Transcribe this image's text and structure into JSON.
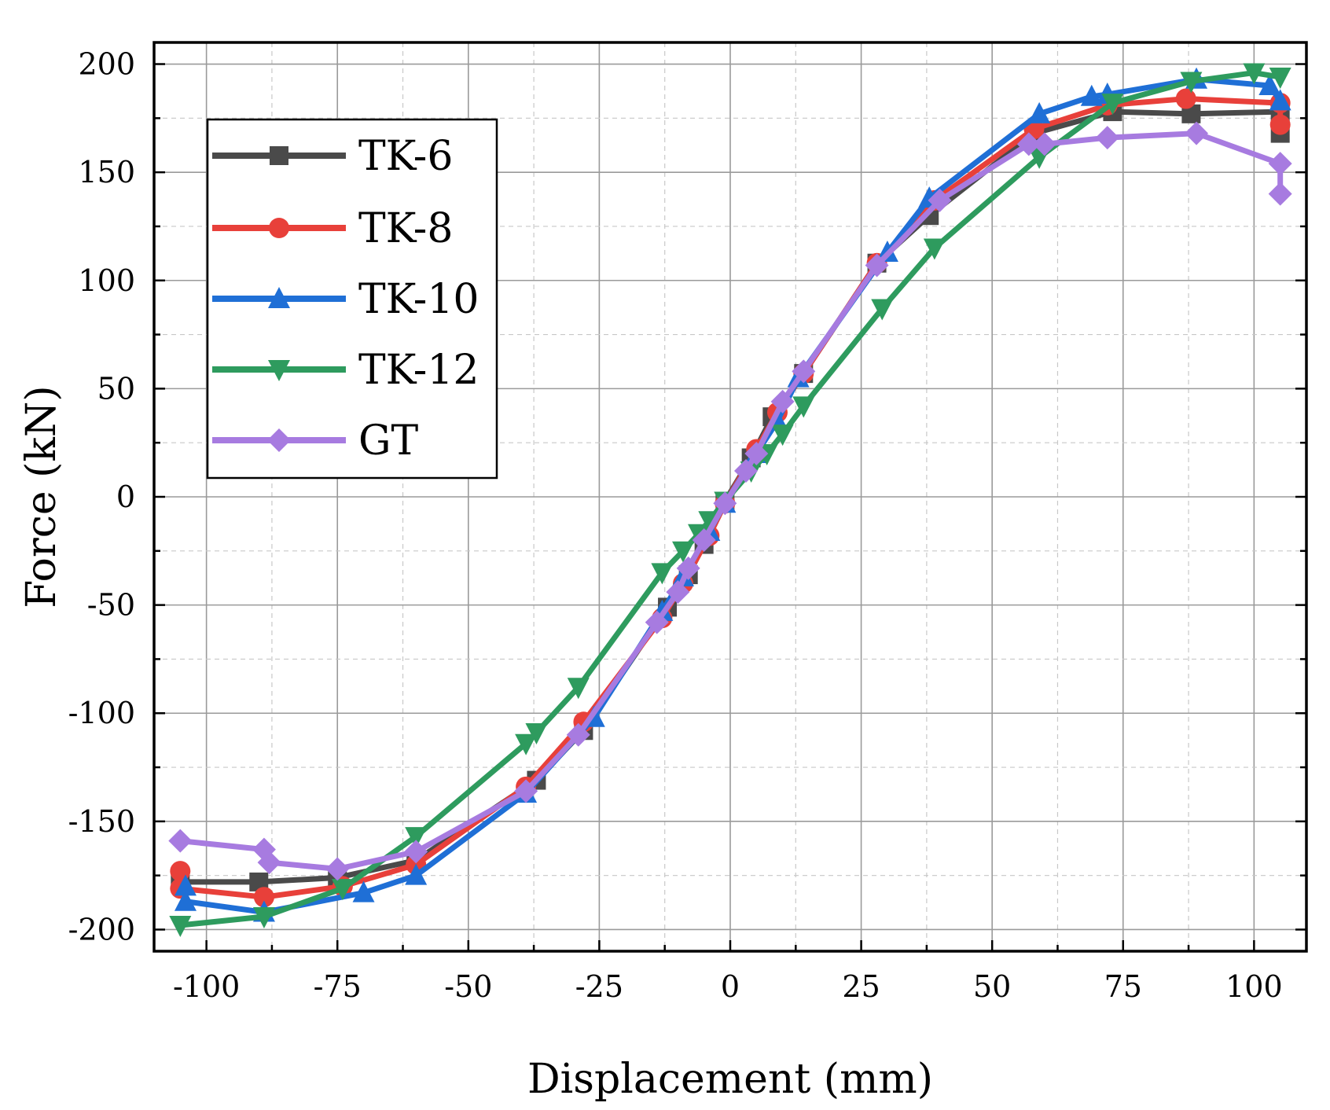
{
  "chart_data": {
    "type": "line",
    "title": "",
    "xlabel": "Displacement (mm)",
    "ylabel": "Force (kN)",
    "xlim": [
      -110,
      110
    ],
    "ylim": [
      -210,
      210
    ],
    "xticks": [
      -100,
      -75,
      -50,
      -25,
      0,
      25,
      50,
      75,
      100
    ],
    "yticks": [
      -200,
      -150,
      -100,
      -50,
      0,
      50,
      100,
      150,
      200
    ],
    "xtick_labels": [
      "-100",
      "-75",
      "-50",
      "-25",
      "0",
      "25",
      "50",
      "75",
      "100"
    ],
    "ytick_labels": [
      "-200",
      "-150",
      "-100",
      "-50",
      "0",
      "50",
      "100",
      "150",
      "200"
    ],
    "grid": true,
    "legend_position": "top-left",
    "series": [
      {
        "name": "TK-6",
        "color": "#4a4a4a",
        "marker": "square",
        "x": [
          -105,
          -90,
          -75,
          -60,
          -37,
          -28,
          -12,
          -8,
          -5,
          -1,
          4,
          8,
          14,
          28,
          38,
          58,
          73,
          88,
          105,
          105
        ],
        "y": [
          -178,
          -178,
          -176,
          -168,
          -131,
          -108,
          -51,
          -36,
          -22,
          -2,
          18,
          37,
          57,
          108,
          130,
          168,
          178,
          177,
          178,
          168
        ]
      },
      {
        "name": "TK-8",
        "color": "#e8403a",
        "marker": "circle",
        "x": [
          -105,
          -105,
          -89,
          -74,
          -60,
          -39,
          -28,
          -13,
          -9,
          -4,
          -1,
          5,
          9,
          14,
          28,
          39,
          58,
          72,
          87,
          105,
          105
        ],
        "y": [
          -173,
          -181,
          -185,
          -180,
          -170,
          -134,
          -104,
          -56,
          -40,
          -18,
          -3,
          22,
          39,
          57,
          108,
          137,
          170,
          181,
          184,
          182,
          172
        ]
      },
      {
        "name": "TK-10",
        "color": "#1f6fd6",
        "marker": "triangle-up",
        "x": [
          -104,
          -104,
          -89,
          -70,
          -60,
          -39,
          -26,
          -13,
          -9,
          -4,
          -1,
          5,
          9,
          13,
          30,
          38,
          59,
          69,
          72,
          89,
          103,
          105
        ],
        "y": [
          -180,
          -187,
          -192,
          -183,
          -175,
          -137,
          -102,
          -53,
          -37,
          -16,
          -3,
          20,
          35,
          55,
          113,
          138,
          177,
          185,
          186,
          193,
          190,
          183
        ]
      },
      {
        "name": "TK-12",
        "color": "#2e9b5e",
        "marker": "triangle-down",
        "x": [
          -105,
          -89,
          -74,
          -60,
          -39,
          -37,
          -29,
          -13,
          -9,
          -6,
          -4,
          -1,
          4,
          7,
          10,
          14,
          29,
          39,
          59,
          73,
          88,
          100,
          105
        ],
        "y": [
          -198,
          -194,
          -181,
          -157,
          -114,
          -109,
          -88,
          -35,
          -25,
          -17,
          -11,
          -2,
          12,
          20,
          29,
          42,
          87,
          115,
          157,
          182,
          192,
          196,
          194
        ]
      },
      {
        "name": "GT",
        "color": "#a77be0",
        "marker": "diamond",
        "x": [
          -105,
          -89,
          -88,
          -75,
          -60,
          -39,
          -29,
          -14,
          -10,
          -8,
          -5,
          -1,
          3,
          5,
          10,
          14,
          28,
          40,
          57,
          60,
          72,
          89,
          105,
          105
        ],
        "y": [
          -159,
          -163,
          -169,
          -172,
          -164,
          -136,
          -110,
          -58,
          -44,
          -33,
          -20,
          -3,
          12,
          20,
          44,
          58,
          107,
          137,
          163,
          163,
          166,
          168,
          154,
          140
        ]
      }
    ]
  }
}
